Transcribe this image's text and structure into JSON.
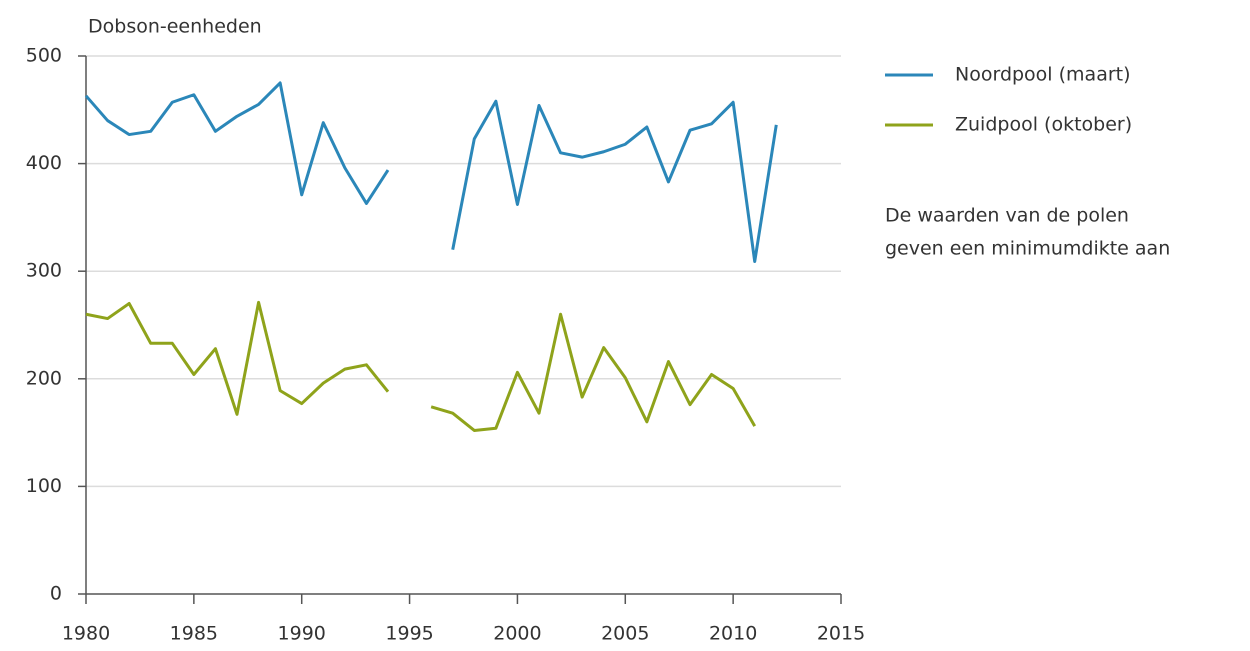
{
  "chart_data": {
    "type": "line",
    "y_label": "Dobson-eenheden",
    "annotation": [
      "De waarden van de polen",
      "geven een minimumdikte aan"
    ],
    "x": [
      1980,
      1981,
      1982,
      1983,
      1984,
      1985,
      1986,
      1987,
      1988,
      1989,
      1990,
      1991,
      1992,
      1993,
      1994,
      1995,
      1996,
      1997,
      1998,
      1999,
      2000,
      2001,
      2002,
      2003,
      2004,
      2005,
      2006,
      2007,
      2008,
      2009,
      2010,
      2011,
      2012
    ],
    "series": [
      {
        "name": "Noordpool (maart)",
        "color": "#2b87b9",
        "values": [
          463,
          440,
          427,
          430,
          457,
          464,
          430,
          444,
          455,
          475,
          371,
          438,
          396,
          363,
          394,
          null,
          null,
          320,
          423,
          458,
          362,
          454,
          410,
          406,
          411,
          418,
          434,
          383,
          431,
          437,
          457,
          309,
          436
        ]
      },
      {
        "name": "Zuidpool (oktober)",
        "color": "#8fa31b",
        "values": [
          260,
          256,
          270,
          233,
          233,
          204,
          228,
          167,
          271,
          189,
          177,
          196,
          209,
          213,
          188,
          null,
          174,
          168,
          152,
          154,
          206,
          168,
          260,
          183,
          229,
          201,
          160,
          216,
          176,
          204,
          191,
          156,
          null
        ]
      }
    ],
    "xlim": [
      1980,
      2015
    ],
    "xticks": [
      1980,
      1985,
      1990,
      1995,
      2000,
      2005,
      2010,
      2015
    ],
    "ylim": [
      0,
      500
    ],
    "yticks": [
      0,
      100,
      200,
      300,
      400,
      500
    ],
    "grid": true,
    "legend": "right"
  }
}
